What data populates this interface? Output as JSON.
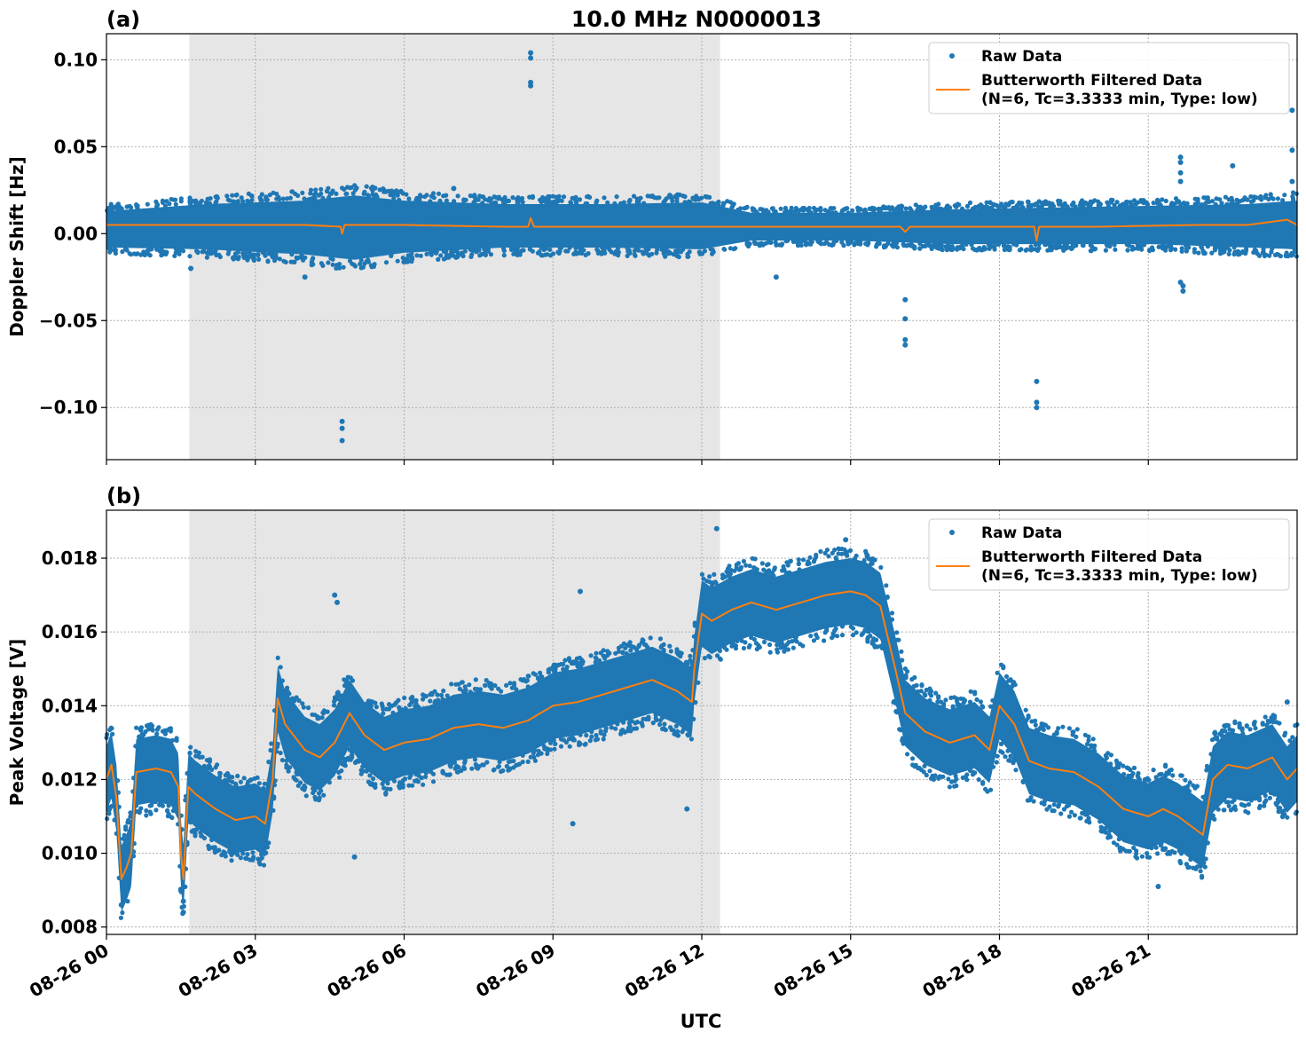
{
  "title": "10.0 MHz N0000013",
  "colors": {
    "raw": "#1f77b4",
    "filtered": "#ff7f0e",
    "shade": "#e6e6e6",
    "grid": "#b0b0b0"
  },
  "legend": {
    "raw_label": "Raw Data",
    "filtered_label_line1": "Butterworth Filtered Data",
    "filtered_label_line2": "(N=6, Tc=3.3333 min, Type: low)"
  },
  "xaxis": {
    "label": "UTC",
    "unit": "hours since 08-26 00:00 UTC",
    "range": [
      0,
      24
    ],
    "tick_hours": [
      0,
      3,
      6,
      9,
      12,
      15,
      18,
      21
    ],
    "tick_labels": [
      "08-26 00",
      "08-26 03",
      "08-26 06",
      "08-26 09",
      "08-26 12",
      "08-26 15",
      "08-26 18",
      "08-26 21"
    ]
  },
  "chart_data": [
    {
      "type": "scatter",
      "panel_label": "(a)",
      "ylabel": "Doppler Shift [Hz]",
      "ylim": [
        -0.13,
        0.115
      ],
      "yticks": [
        0.1,
        0.05,
        0.0,
        -0.05,
        -0.1
      ],
      "ytick_labels": [
        "0.10",
        "0.05",
        "0.00",
        "−0.05",
        "−0.10"
      ],
      "grid": true,
      "legend_position": "top-right",
      "shaded_interval_utc_hours": [
        1.67,
        12.37
      ],
      "series": [
        {
          "name": "Raw Data",
          "envelope": {
            "x": [
              0,
              2,
              4,
              5,
              6,
              8,
              10,
              12,
              13,
              15,
              17,
              19,
              21,
              23,
              24
            ],
            "upper": [
              0.013,
              0.017,
              0.019,
              0.022,
              0.019,
              0.017,
              0.017,
              0.018,
              0.012,
              0.012,
              0.014,
              0.015,
              0.016,
              0.017,
              0.019
            ],
            "lower": [
              -0.008,
              -0.009,
              -0.012,
              -0.015,
              -0.011,
              -0.008,
              -0.008,
              -0.009,
              -0.004,
              -0.004,
              -0.006,
              -0.006,
              -0.006,
              -0.008,
              -0.009
            ]
          },
          "outliers": [
            {
              "x": 4.75,
              "y": -0.108
            },
            {
              "x": 4.75,
              "y": -0.112
            },
            {
              "x": 4.75,
              "y": -0.119
            },
            {
              "x": 8.55,
              "y": 0.104
            },
            {
              "x": 8.55,
              "y": 0.101
            },
            {
              "x": 8.55,
              "y": 0.087
            },
            {
              "x": 8.55,
              "y": 0.085
            },
            {
              "x": 16.1,
              "y": -0.038
            },
            {
              "x": 16.1,
              "y": -0.049
            },
            {
              "x": 16.1,
              "y": -0.061
            },
            {
              "x": 16.1,
              "y": -0.064
            },
            {
              "x": 18.75,
              "y": -0.085
            },
            {
              "x": 18.75,
              "y": -0.097
            },
            {
              "x": 18.75,
              "y": -0.1
            },
            {
              "x": 21.65,
              "y": 0.044
            },
            {
              "x": 21.65,
              "y": 0.041
            },
            {
              "x": 21.65,
              "y": 0.035
            },
            {
              "x": 21.65,
              "y": 0.03
            },
            {
              "x": 21.65,
              "y": -0.028
            },
            {
              "x": 21.7,
              "y": -0.03
            },
            {
              "x": 21.7,
              "y": -0.033
            },
            {
              "x": 22.7,
              "y": 0.039
            },
            {
              "x": 23.9,
              "y": 0.071
            },
            {
              "x": 23.9,
              "y": 0.048
            },
            {
              "x": 23.9,
              "y": 0.03
            },
            {
              "x": 1.7,
              "y": -0.02
            },
            {
              "x": 13.5,
              "y": -0.025
            },
            {
              "x": 4.0,
              "y": -0.025
            },
            {
              "x": 7.0,
              "y": 0.026
            }
          ]
        },
        {
          "name": "Butterworth Filtered Data (N=6, Tc=3.3333 min, Type: low)",
          "x": [
            0,
            1,
            2,
            3,
            4,
            4.72,
            4.75,
            4.8,
            6,
            8,
            8.5,
            8.55,
            8.62,
            10,
            12,
            14,
            16,
            16.1,
            16.2,
            18.7,
            18.75,
            18.8,
            20,
            22,
            23,
            23.8,
            24
          ],
          "y": [
            0.005,
            0.005,
            0.005,
            0.005,
            0.005,
            0.004,
            0.0,
            0.005,
            0.005,
            0.004,
            0.004,
            0.009,
            0.004,
            0.004,
            0.004,
            0.004,
            0.004,
            0.001,
            0.004,
            0.004,
            -0.004,
            0.004,
            0.004,
            0.005,
            0.005,
            0.008,
            0.005
          ]
        }
      ]
    },
    {
      "type": "scatter",
      "panel_label": "(b)",
      "ylabel": "Peak Voltage [V]",
      "ylim": [
        0.0078,
        0.0193
      ],
      "yticks": [
        0.018,
        0.016,
        0.014,
        0.012,
        0.01,
        0.008
      ],
      "ytick_labels": [
        "0.018",
        "0.016",
        "0.014",
        "0.012",
        "0.010",
        "0.008"
      ],
      "grid": true,
      "legend_position": "top-right",
      "shaded_interval_utc_hours": [
        1.67,
        12.37
      ],
      "series": [
        {
          "name": "Raw Data",
          "band_half_width": 0.0009,
          "outliers": [
            {
              "x": 1.55,
              "y": 0.0084
            },
            {
              "x": 1.55,
              "y": 0.0087
            },
            {
              "x": 0.3,
              "y": 0.0086
            },
            {
              "x": 4.6,
              "y": 0.017
            },
            {
              "x": 4.65,
              "y": 0.0168
            },
            {
              "x": 5.0,
              "y": 0.0099
            },
            {
              "x": 9.55,
              "y": 0.0171
            },
            {
              "x": 9.4,
              "y": 0.0108
            },
            {
              "x": 11.7,
              "y": 0.0112
            },
            {
              "x": 12.3,
              "y": 0.0188
            },
            {
              "x": 14.9,
              "y": 0.0185
            },
            {
              "x": 21.2,
              "y": 0.0091
            },
            {
              "x": 23.8,
              "y": 0.0141
            }
          ]
        },
        {
          "name": "Butterworth Filtered Data (N=6, Tc=3.3333 min, Type: low)",
          "x": [
            0,
            0.1,
            0.2,
            0.3,
            0.4,
            0.5,
            0.6,
            1.0,
            1.3,
            1.45,
            1.5,
            1.55,
            1.65,
            1.8,
            2.2,
            2.6,
            3.0,
            3.2,
            3.35,
            3.45,
            3.6,
            4.0,
            4.3,
            4.6,
            4.9,
            5.2,
            5.6,
            6.0,
            6.5,
            7.0,
            7.5,
            8.0,
            8.5,
            9.0,
            9.5,
            10.0,
            10.5,
            11.0,
            11.5,
            11.8,
            11.85,
            12.0,
            12.2,
            12.6,
            13.0,
            13.5,
            14.0,
            14.5,
            15.0,
            15.3,
            15.6,
            15.9,
            16.1,
            16.5,
            17.0,
            17.5,
            17.8,
            18.0,
            18.3,
            18.6,
            19.0,
            19.5,
            20.0,
            20.5,
            21.0,
            21.3,
            21.6,
            21.9,
            22.1,
            22.3,
            22.6,
            23.0,
            23.5,
            23.8,
            24.0
          ],
          "y": [
            0.012,
            0.0124,
            0.0115,
            0.0093,
            0.0096,
            0.01,
            0.0122,
            0.0123,
            0.0122,
            0.0118,
            0.01,
            0.0093,
            0.0118,
            0.0116,
            0.0112,
            0.0109,
            0.011,
            0.0108,
            0.012,
            0.0142,
            0.0135,
            0.0128,
            0.0126,
            0.013,
            0.0138,
            0.0132,
            0.0128,
            0.013,
            0.0131,
            0.0134,
            0.0135,
            0.0134,
            0.0136,
            0.014,
            0.0141,
            0.0143,
            0.0145,
            0.0147,
            0.0144,
            0.0141,
            0.015,
            0.0165,
            0.0163,
            0.0166,
            0.0168,
            0.0166,
            0.0168,
            0.017,
            0.0171,
            0.017,
            0.0167,
            0.015,
            0.0138,
            0.0133,
            0.013,
            0.0132,
            0.0128,
            0.014,
            0.0135,
            0.0125,
            0.0123,
            0.0122,
            0.0118,
            0.0112,
            0.011,
            0.0112,
            0.011,
            0.0107,
            0.0105,
            0.012,
            0.0124,
            0.0123,
            0.0126,
            0.012,
            0.0123
          ]
        }
      ]
    }
  ]
}
